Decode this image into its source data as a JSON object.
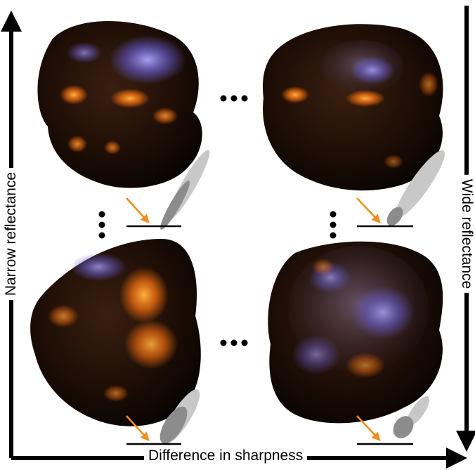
{
  "labels": {
    "x_axis": "Difference in sharpness",
    "left_axis": "Narrow reflectance",
    "right_axis": "Wide reflectance"
  },
  "colors": {
    "incident_arrow": "#f08c1a",
    "lobe_outer": "#c8c8c8",
    "lobe_inner": "#8c8c8c",
    "object_base": "#1a0c05",
    "highlight_warm": "#ff7a1a",
    "highlight_cool": "#8a80ff"
  },
  "panels": [
    {
      "name": "top-left",
      "reflectance": "narrow",
      "sharpness": "low"
    },
    {
      "name": "top-right",
      "reflectance": "wide",
      "sharpness": "low"
    },
    {
      "name": "bottom-left",
      "reflectance": "narrow",
      "sharpness": "high"
    },
    {
      "name": "bottom-right",
      "reflectance": "wide",
      "sharpness": "high"
    }
  ]
}
